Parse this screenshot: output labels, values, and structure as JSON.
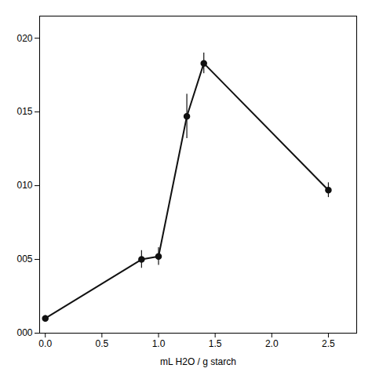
{
  "chart_data": {
    "type": "line",
    "x": [
      0.0,
      0.85,
      1.0,
      1.25,
      1.4,
      2.5
    ],
    "values": [
      0.001,
      0.005,
      0.0052,
      0.0147,
      0.0183,
      0.0097
    ],
    "yerr": [
      0.0002,
      0.0006,
      0.0006,
      0.0015,
      0.0007,
      0.0005
    ],
    "xlabel": "mL H2O / g starch",
    "xlim": [
      -0.05,
      2.75
    ],
    "ylim": [
      0.0,
      0.0215
    ],
    "xticks": [
      {
        "value": 0.0,
        "label": "0.0"
      },
      0.5,
      {
        "value": 1.0,
        "label": "1.0"
      },
      1.5,
      {
        "value": 2.0,
        "label": "2.0"
      },
      2.5
    ],
    "yticks": [
      {
        "value": 0.0,
        "label": "000"
      },
      {
        "value": 0.005,
        "label": "005"
      },
      {
        "value": 0.01,
        "label": "010"
      },
      {
        "value": 0.015,
        "label": "015"
      },
      {
        "value": 0.02,
        "label": "020"
      }
    ],
    "color": "#111111",
    "marker": "circle",
    "line_style": "solid"
  }
}
